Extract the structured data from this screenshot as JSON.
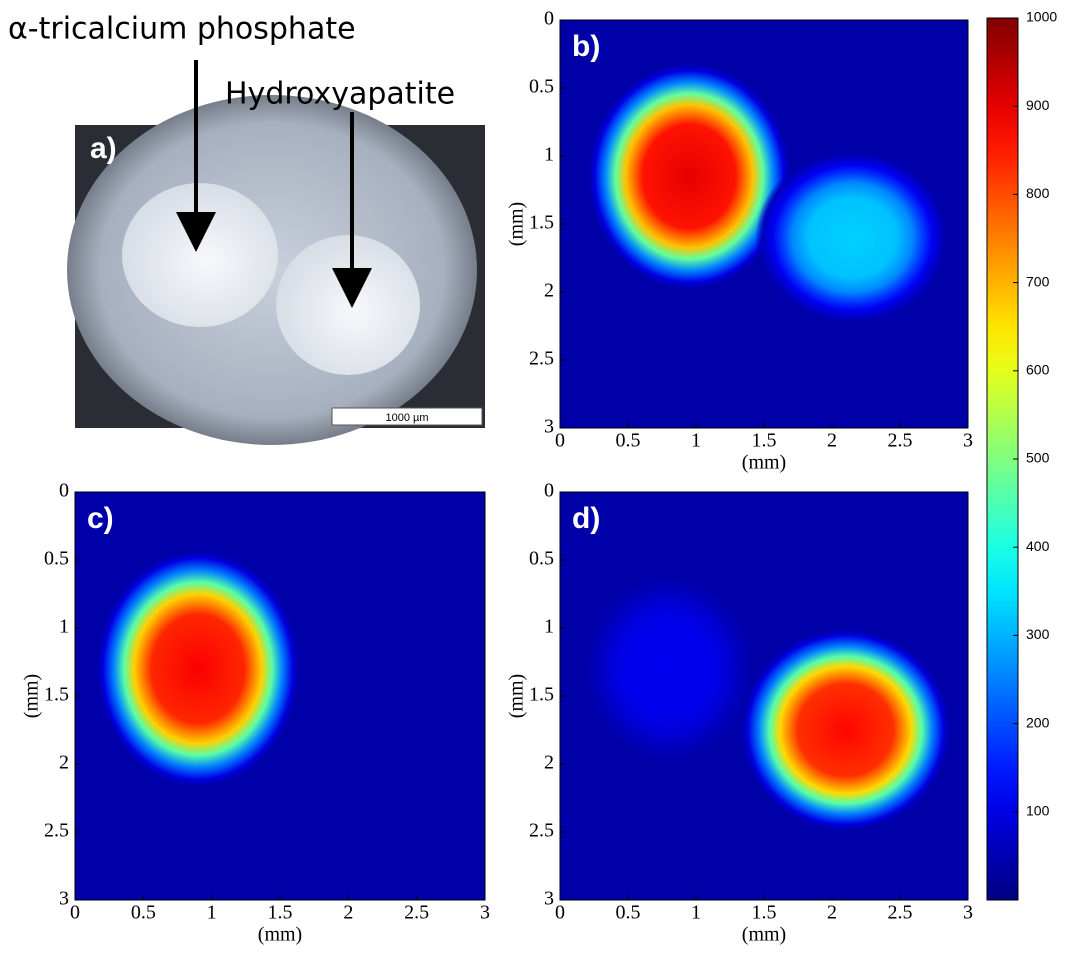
{
  "photo": {
    "label": "a)",
    "scale_bar": "1000 µm",
    "annotations": [
      "α-tricalcium phosphate",
      "Hydroxyapatite"
    ]
  },
  "colorbar": {
    "clim": [
      0,
      1000
    ],
    "ticks": [
      100,
      200,
      300,
      400,
      500,
      600,
      700,
      800,
      900,
      1000
    ]
  },
  "chart_data": [
    {
      "type": "heatmap",
      "label": "b)",
      "xlabel": "(mm)",
      "ylabel": "(mm)",
      "xlim": [
        0,
        3
      ],
      "ylim": [
        0,
        3
      ],
      "y_inverted": true,
      "xticks": [
        0,
        0.5,
        1,
        1.5,
        2,
        2.5,
        3
      ],
      "yticks": [
        0,
        0.5,
        1,
        1.5,
        2,
        2.5,
        3
      ],
      "background": 40,
      "spots": [
        {
          "x": 0.95,
          "y": 1.15,
          "rx": 0.58,
          "ry": 0.65,
          "value": 900
        },
        {
          "x": 2.15,
          "y": 1.6,
          "rx": 0.55,
          "ry": 0.5,
          "value": 330
        }
      ]
    },
    {
      "type": "heatmap",
      "label": "c)",
      "xlabel": "(mm)",
      "ylabel": "(mm)",
      "xlim": [
        0,
        3
      ],
      "ylim": [
        0,
        3
      ],
      "y_inverted": true,
      "xticks": [
        0,
        0.5,
        1,
        1.5,
        2,
        2.5,
        3
      ],
      "yticks": [
        0,
        0.5,
        1,
        1.5,
        2,
        2.5,
        3
      ],
      "background": 40,
      "spots": [
        {
          "x": 0.9,
          "y": 1.3,
          "rx": 0.58,
          "ry": 0.68,
          "value": 880
        }
      ]
    },
    {
      "type": "heatmap",
      "label": "d)",
      "xlabel": "(mm)",
      "ylabel": "(mm)",
      "xlim": [
        0,
        3
      ],
      "ylim": [
        0,
        3
      ],
      "y_inverted": true,
      "xticks": [
        0,
        0.5,
        1,
        1.5,
        2,
        2.5,
        3
      ],
      "yticks": [
        0,
        0.5,
        1,
        1.5,
        2,
        2.5,
        3
      ],
      "background": 40,
      "spots": [
        {
          "x": 0.8,
          "y": 1.3,
          "rx": 0.5,
          "ry": 0.55,
          "value": 110
        },
        {
          "x": 2.1,
          "y": 1.75,
          "rx": 0.6,
          "ry": 0.58,
          "value": 870
        }
      ]
    }
  ]
}
